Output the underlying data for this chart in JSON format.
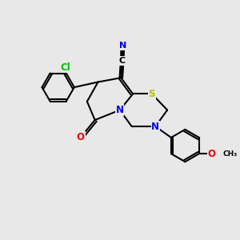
{
  "background_color": "#e8e8e8",
  "figsize": [
    3.0,
    3.0
  ],
  "dpi": 100,
  "bond_color": "#000000",
  "bond_lw": 1.5,
  "atom_colors": {
    "N": "#0000ee",
    "O": "#ee0000",
    "S": "#bbbb00",
    "Cl": "#00bb00",
    "C": "#000000"
  },
  "font_size": 8.5
}
